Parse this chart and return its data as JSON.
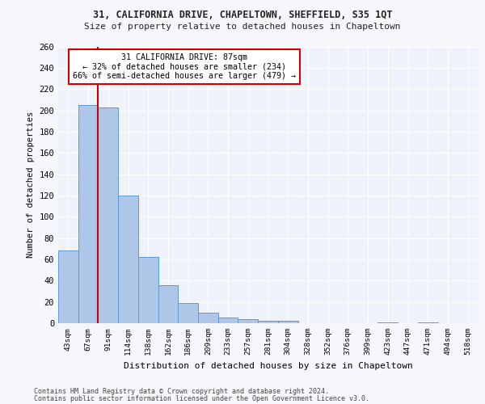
{
  "title_line1": "31, CALIFORNIA DRIVE, CHAPELTOWN, SHEFFIELD, S35 1QT",
  "title_line2": "Size of property relative to detached houses in Chapeltown",
  "xlabel": "Distribution of detached houses by size in Chapeltown",
  "ylabel": "Number of detached properties",
  "footer_line1": "Contains HM Land Registry data © Crown copyright and database right 2024.",
  "footer_line2": "Contains public sector information licensed under the Open Government Licence v3.0.",
  "annotation_line1": "31 CALIFORNIA DRIVE: 87sqm",
  "annotation_line2": "← 32% of detached houses are smaller (234)",
  "annotation_line3": "66% of semi-detached houses are larger (479) →",
  "bar_labels": [
    "43sqm",
    "67sqm",
    "91sqm",
    "114sqm",
    "138sqm",
    "162sqm",
    "186sqm",
    "209sqm",
    "233sqm",
    "257sqm",
    "281sqm",
    "304sqm",
    "328sqm",
    "352sqm",
    "376sqm",
    "399sqm",
    "423sqm",
    "447sqm",
    "471sqm",
    "494sqm",
    "518sqm"
  ],
  "bar_values": [
    68,
    205,
    203,
    120,
    62,
    36,
    19,
    10,
    5,
    4,
    2,
    2,
    0,
    0,
    0,
    0,
    1,
    0,
    1,
    0,
    0
  ],
  "bar_color": "#aec6e8",
  "bar_edge_color": "#5b9bd5",
  "red_line_x": 1.5,
  "ylim": [
    0,
    260
  ],
  "yticks": [
    0,
    20,
    40,
    60,
    80,
    100,
    120,
    140,
    160,
    180,
    200,
    220,
    240,
    260
  ],
  "bg_color": "#edf2fb",
  "grid_color": "#ffffff",
  "fig_bg_color": "#f5f7fa",
  "annotation_box_color": "#ffffff",
  "annotation_box_edge": "#cc0000"
}
